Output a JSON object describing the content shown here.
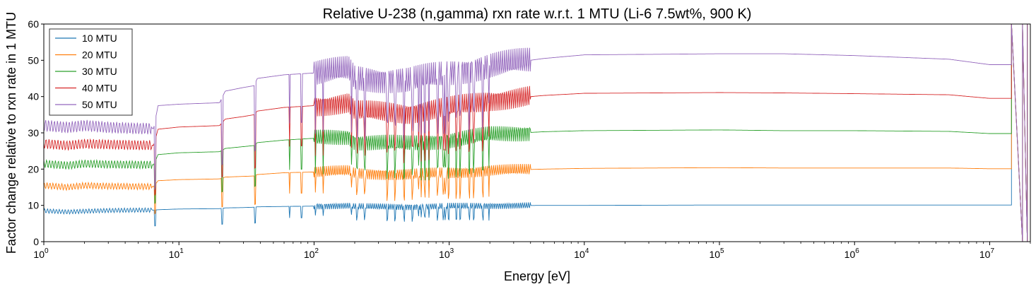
{
  "chart_data": {
    "type": "line",
    "title": "Relative U-238 (n,gamma) rxn rate w.r.t. 1 MTU (Li-6 7.5wt%, 900 K)",
    "xlabel": "Energy [eV]",
    "ylabel": "Factor change relative to rxn rate in 1 MTU",
    "xscale": "log",
    "xlim": [
      1,
      20000000
    ],
    "ylim": [
      0,
      60
    ],
    "yticks": [
      0,
      10,
      20,
      30,
      40,
      50,
      60
    ],
    "xticks_major": [
      1,
      10,
      100,
      1000,
      10000,
      100000,
      1000000,
      10000000
    ],
    "xtick_labels": [
      {
        "base": "10",
        "exp": "0"
      },
      {
        "base": "10",
        "exp": "1"
      },
      {
        "base": "10",
        "exp": "2"
      },
      {
        "base": "10",
        "exp": "3"
      },
      {
        "base": "10",
        "exp": "4"
      },
      {
        "base": "10",
        "exp": "5"
      },
      {
        "base": "10",
        "exp": "6"
      },
      {
        "base": "10",
        "exp": "7"
      }
    ],
    "grid": false,
    "legend_position": "top-left",
    "resonances_eV": [
      6.67,
      20.9,
      36.7,
      66.0,
      80.7,
      102.5,
      116.9,
      189.7,
      208.5,
      237.4,
      347.8,
      398.5,
      463.0,
      535.0,
      594.0,
      621.0,
      661.0,
      708.0,
      821.0,
      905.0,
      937.0,
      991.0,
      1131.0,
      1211.0,
      1406.0,
      1522.0,
      1780.0,
      1968.0
    ],
    "series": [
      {
        "name": "10 MTU",
        "color": "#1f77b4",
        "low_energy_level": 8.5,
        "plateau_level": 10.1,
        "end_level": 10.1
      },
      {
        "name": "20 MTU",
        "color": "#ff7f0e",
        "low_energy_level": 15.5,
        "plateau_level": 20.3,
        "end_level": 20.1
      },
      {
        "name": "30 MTU",
        "color": "#2ca02c",
        "low_energy_level": 21.5,
        "plateau_level": 30.6,
        "end_level": 29.8
      },
      {
        "name": "40 MTU",
        "color": "#d62728",
        "low_energy_level": 27.0,
        "plateau_level": 41.0,
        "end_level": 39.5
      },
      {
        "name": "50 MTU",
        "color": "#9467bd",
        "low_energy_level": 32.0,
        "plateau_level": 51.5,
        "end_level": 48.8
      }
    ],
    "curve_points": {
      "energy_eV": [
        1,
        1.5,
        2,
        3,
        5,
        6.5,
        7,
        10,
        20,
        22,
        30,
        36,
        38,
        60,
        100,
        180,
        200,
        500,
        1000,
        2000,
        5000,
        10000,
        100000,
        300000,
        1000000,
        5000000,
        10000000,
        14500000
      ],
      "values": [
        [
          8.5,
          8.2,
          8.4,
          8.6,
          8.7,
          8.7,
          8.8,
          9.0,
          9.1,
          9.3,
          9.4,
          9.5,
          9.6,
          9.7,
          9.8,
          9.9,
          9.7,
          9.6,
          9.8,
          9.9,
          10.0,
          10.0,
          10.1,
          10.1,
          10.1,
          10.1,
          10.1,
          10.1
        ],
        [
          15.5,
          15.0,
          15.5,
          15.3,
          15.2,
          15.2,
          16.8,
          17.1,
          17.3,
          17.8,
          18.0,
          18.1,
          18.5,
          19.0,
          19.2,
          19.5,
          18.8,
          18.5,
          19.0,
          19.6,
          20.0,
          20.2,
          20.4,
          20.3,
          20.3,
          20.3,
          20.1,
          20.1
        ],
        [
          21.5,
          21.0,
          21.5,
          21.3,
          21.2,
          21.2,
          24.0,
          24.5,
          24.8,
          25.7,
          26.2,
          26.5,
          27.3,
          28.0,
          28.5,
          29.0,
          27.5,
          27.0,
          28.0,
          29.5,
          30.3,
          30.6,
          30.8,
          30.6,
          30.6,
          30.4,
          29.8,
          29.8
        ],
        [
          27.0,
          26.5,
          27.0,
          26.8,
          26.6,
          26.6,
          31.0,
          31.6,
          32.0,
          33.8,
          34.5,
          35.0,
          36.0,
          37.0,
          37.5,
          38.2,
          36.0,
          35.5,
          37.0,
          39.0,
          40.3,
          40.9,
          41.1,
          41.0,
          40.8,
          40.5,
          39.5,
          39.5
        ],
        [
          32.0,
          31.5,
          32.0,
          31.5,
          31.2,
          31.2,
          37.5,
          37.9,
          38.3,
          41.5,
          42.5,
          43.0,
          45.0,
          46.0,
          46.5,
          47.5,
          45.0,
          44.5,
          46.5,
          48.5,
          50.5,
          51.5,
          51.8,
          51.8,
          51.3,
          50.3,
          48.8,
          48.8
        ]
      ]
    }
  }
}
